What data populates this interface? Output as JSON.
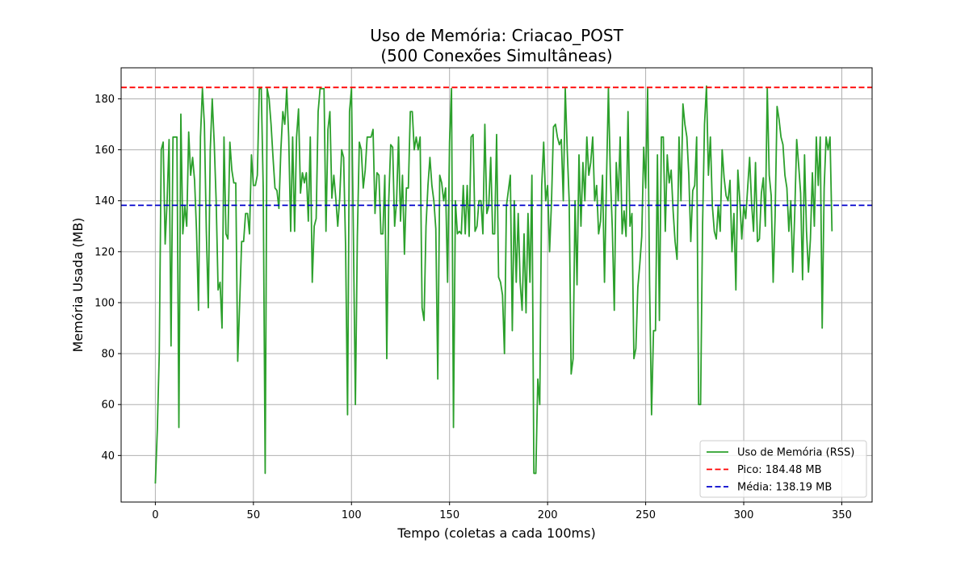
{
  "chart_data": {
    "type": "line",
    "title": "Uso de Memória: Criacao_POST",
    "subtitle": "(500 Conexões Simultâneas)",
    "xlabel": "Tempo (coletas a cada 100ms)",
    "ylabel": "Memória Usada (MB)",
    "xlim": [
      -17.45,
      365.45
    ],
    "ylim": [
      21.73,
      192.18
    ],
    "xticks": [
      0,
      50,
      100,
      150,
      200,
      250,
      300,
      350
    ],
    "yticks": [
      40,
      60,
      80,
      100,
      120,
      140,
      160,
      180
    ],
    "grid": true,
    "legend_position": "lower-right",
    "series": [
      {
        "name": "Uso de Memória (RSS)",
        "color": "#2ca02c",
        "style": "solid",
        "x_start": 0,
        "x_step": 1,
        "values": [
          29,
          50,
          80,
          160,
          163,
          123,
          140,
          164,
          83,
          165,
          165,
          165,
          51,
          174,
          127,
          138,
          130,
          167,
          150,
          157,
          148,
          128,
          97,
          165,
          184,
          170,
          128,
          98,
          160,
          180,
          163,
          140,
          105,
          108,
          90,
          165,
          127,
          125,
          163,
          152,
          147,
          147,
          77,
          100,
          124,
          124,
          135,
          135,
          127,
          158,
          146,
          146,
          150,
          184,
          184,
          145,
          33,
          184,
          180,
          170,
          157,
          145,
          144,
          137,
          160,
          175,
          170,
          184,
          165,
          128,
          165,
          128,
          165,
          176,
          143,
          151,
          147,
          151,
          132,
          165,
          108,
          130,
          133,
          175,
          184,
          184,
          184,
          128,
          168,
          175,
          141,
          150,
          141,
          130,
          141,
          160,
          157,
          122,
          56,
          175,
          184,
          125,
          60,
          126,
          163,
          160,
          145,
          152,
          165,
          165,
          165,
          168,
          135,
          151,
          150,
          127,
          127,
          150,
          78,
          140,
          162,
          161,
          130,
          140,
          165,
          132,
          150,
          119,
          145,
          145,
          175,
          175,
          160,
          165,
          160,
          165,
          98,
          93,
          130,
          146,
          157,
          146,
          140,
          129,
          70,
          150,
          147,
          140,
          145,
          108,
          163,
          184,
          51,
          140,
          127,
          128,
          127,
          146,
          127,
          146,
          126,
          165,
          166,
          128,
          130,
          140,
          140,
          127,
          170,
          135,
          138,
          157,
          127,
          127,
          166,
          110,
          108,
          103,
          80,
          138,
          144,
          150,
          89,
          140,
          108,
          135,
          108,
          97,
          127,
          96,
          135,
          108,
          150,
          33,
          33,
          70,
          60,
          146,
          163,
          140,
          146,
          120,
          140,
          169,
          170,
          165,
          162,
          164,
          140,
          184,
          160,
          140,
          72,
          78,
          140,
          107,
          158,
          130,
          155,
          140,
          165,
          150,
          155,
          165,
          140,
          146,
          127,
          132,
          150,
          108,
          147,
          184,
          150,
          129,
          97,
          155,
          140,
          165,
          127,
          136,
          126,
          175,
          130,
          135,
          78,
          82,
          106,
          115,
          126,
          161,
          145,
          184,
          107,
          56,
          89,
          89,
          158,
          93,
          165,
          165,
          128,
          158,
          147,
          152,
          136,
          124,
          117,
          165,
          140,
          178,
          170,
          165,
          150,
          124,
          144,
          146,
          165,
          60,
          60,
          130,
          170,
          185,
          150,
          165,
          138,
          128,
          125,
          138,
          128,
          160,
          149,
          142,
          140,
          148,
          120,
          135,
          105,
          152,
          140,
          125,
          138,
          133,
          145,
          157,
          139,
          128,
          155,
          124,
          125,
          143,
          149,
          130,
          184,
          150,
          142,
          108,
          134,
          177,
          172,
          165,
          162,
          150,
          145,
          128,
          140,
          112,
          135,
          164,
          154,
          143,
          109,
          158,
          128,
          112,
          125,
          151,
          130,
          165,
          146,
          165,
          90,
          145,
          165,
          160,
          165,
          128
        ]
      },
      {
        "name": "Pico: 184.48 MB",
        "color": "#ff0000",
        "style": "dashed",
        "y": 184.48
      },
      {
        "name": "Média: 138.19 MB",
        "color": "#0000cc",
        "style": "dashed",
        "y": 138.19
      }
    ]
  }
}
